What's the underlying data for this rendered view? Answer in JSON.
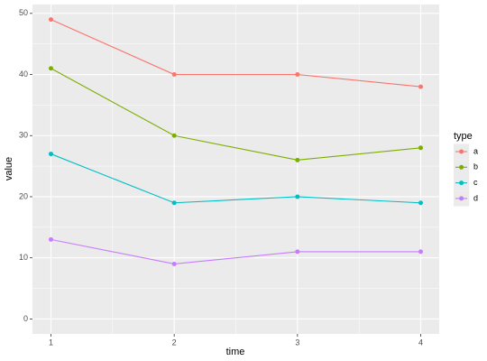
{
  "chart_data": {
    "type": "line",
    "x_label": "time",
    "y_label": "value",
    "legend_title": "type",
    "x": [
      1,
      2,
      3,
      4
    ],
    "series": [
      {
        "name": "a",
        "color": "#F8766D",
        "values": [
          49,
          40,
          40,
          38
        ]
      },
      {
        "name": "b",
        "color": "#7CAE00",
        "values": [
          41,
          30,
          26,
          28
        ]
      },
      {
        "name": "c",
        "color": "#00BFC4",
        "values": [
          27,
          19,
          20,
          19
        ]
      },
      {
        "name": "d",
        "color": "#C77CFF",
        "values": [
          13,
          9,
          11,
          11
        ]
      }
    ],
    "xlim": [
      0.85,
      4.15
    ],
    "xticks": [
      1,
      2,
      3,
      4
    ],
    "ylim": [
      -2.45,
      51.45
    ],
    "yticks": [
      0,
      10,
      20,
      30,
      40,
      50
    ],
    "grid": true,
    "minor_grid": true,
    "legend_position": "right",
    "markers": true
  }
}
